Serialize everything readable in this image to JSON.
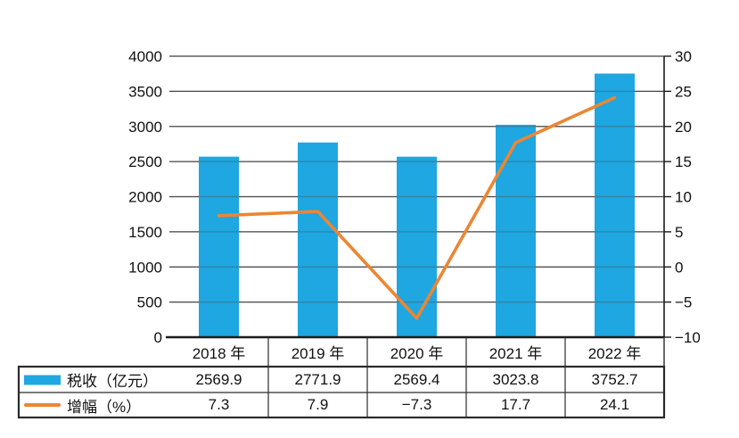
{
  "chart_data": {
    "type": "bar+line",
    "title": "",
    "categories": [
      "2018 年",
      "2019 年",
      "2020 年",
      "2021 年",
      "2022 年"
    ],
    "series": [
      {
        "name": "税收（亿元）",
        "type": "bar",
        "axis": "left",
        "values": [
          2569.9,
          2771.9,
          2569.4,
          3023.8,
          3752.7
        ]
      },
      {
        "name": "增幅（%）",
        "type": "line",
        "axis": "right",
        "values": [
          7.3,
          7.9,
          -7.3,
          17.7,
          24.1
        ]
      }
    ],
    "left_axis": {
      "min": 0,
      "max": 4000,
      "step": 500
    },
    "right_axis": {
      "min": -10,
      "max": 30,
      "step": 5
    },
    "grid": true,
    "legend_position": "table-left"
  },
  "colors": {
    "bar": "#1ea7e1",
    "line": "#ec8633",
    "gridline": "#4a4a4a",
    "axis": "#1b1b1b",
    "table_border": "#2a2a2a",
    "text": "#111111"
  }
}
